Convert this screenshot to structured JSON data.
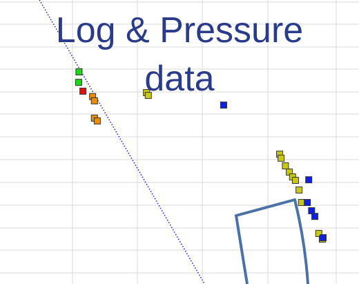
{
  "title_lines": [
    "Log & Pressure",
    "data"
  ],
  "colors": {
    "title": "#2a3b8c",
    "trend_line": "#2323d8",
    "grid": "#d9d9d9",
    "outline_shape": "#4a72a8",
    "green": "#19d919",
    "red": "#e01010",
    "orange": "#f08c00",
    "yellow": "#c8c810",
    "blue": "#1020e0"
  },
  "chart_data": {
    "type": "scatter",
    "title": "Log & Pressure data",
    "xlabel": "",
    "ylabel": "",
    "xlim": [
      0,
      100
    ],
    "ylim": [
      0,
      100
    ],
    "grid": true,
    "series": [
      {
        "color_key": "green",
        "points": [
          [
            22.0,
            74.7
          ],
          [
            21.9,
            71.0
          ]
        ]
      },
      {
        "color_key": "red",
        "points": [
          [
            23.1,
            67.9
          ]
        ]
      },
      {
        "color_key": "orange",
        "points": [
          [
            25.8,
            66.0
          ],
          [
            26.3,
            64.5
          ],
          [
            26.3,
            58.4
          ],
          [
            27.1,
            57.4
          ]
        ]
      },
      {
        "color_key": "yellow",
        "points": [
          [
            40.8,
            67.4
          ],
          [
            41.3,
            66.4
          ],
          [
            77.9,
            45.7
          ],
          [
            78.3,
            44.3
          ],
          [
            79.5,
            41.6
          ],
          [
            80.6,
            39.4
          ],
          [
            81.5,
            37.7
          ],
          [
            82.3,
            36.5
          ],
          [
            83.3,
            33.1
          ],
          [
            84.0,
            28.7
          ],
          [
            88.8,
            17.8
          ],
          [
            89.8,
            15.8
          ]
        ]
      },
      {
        "color_key": "blue",
        "points": [
          [
            62.3,
            63.0
          ],
          [
            86.0,
            36.7
          ],
          [
            85.6,
            28.7
          ],
          [
            86.8,
            25.8
          ],
          [
            87.7,
            23.8
          ],
          [
            90.0,
            16.3
          ]
        ]
      }
    ],
    "trend_line": [
      [
        11.0,
        100.0
      ],
      [
        57.0,
        0.0
      ]
    ]
  }
}
